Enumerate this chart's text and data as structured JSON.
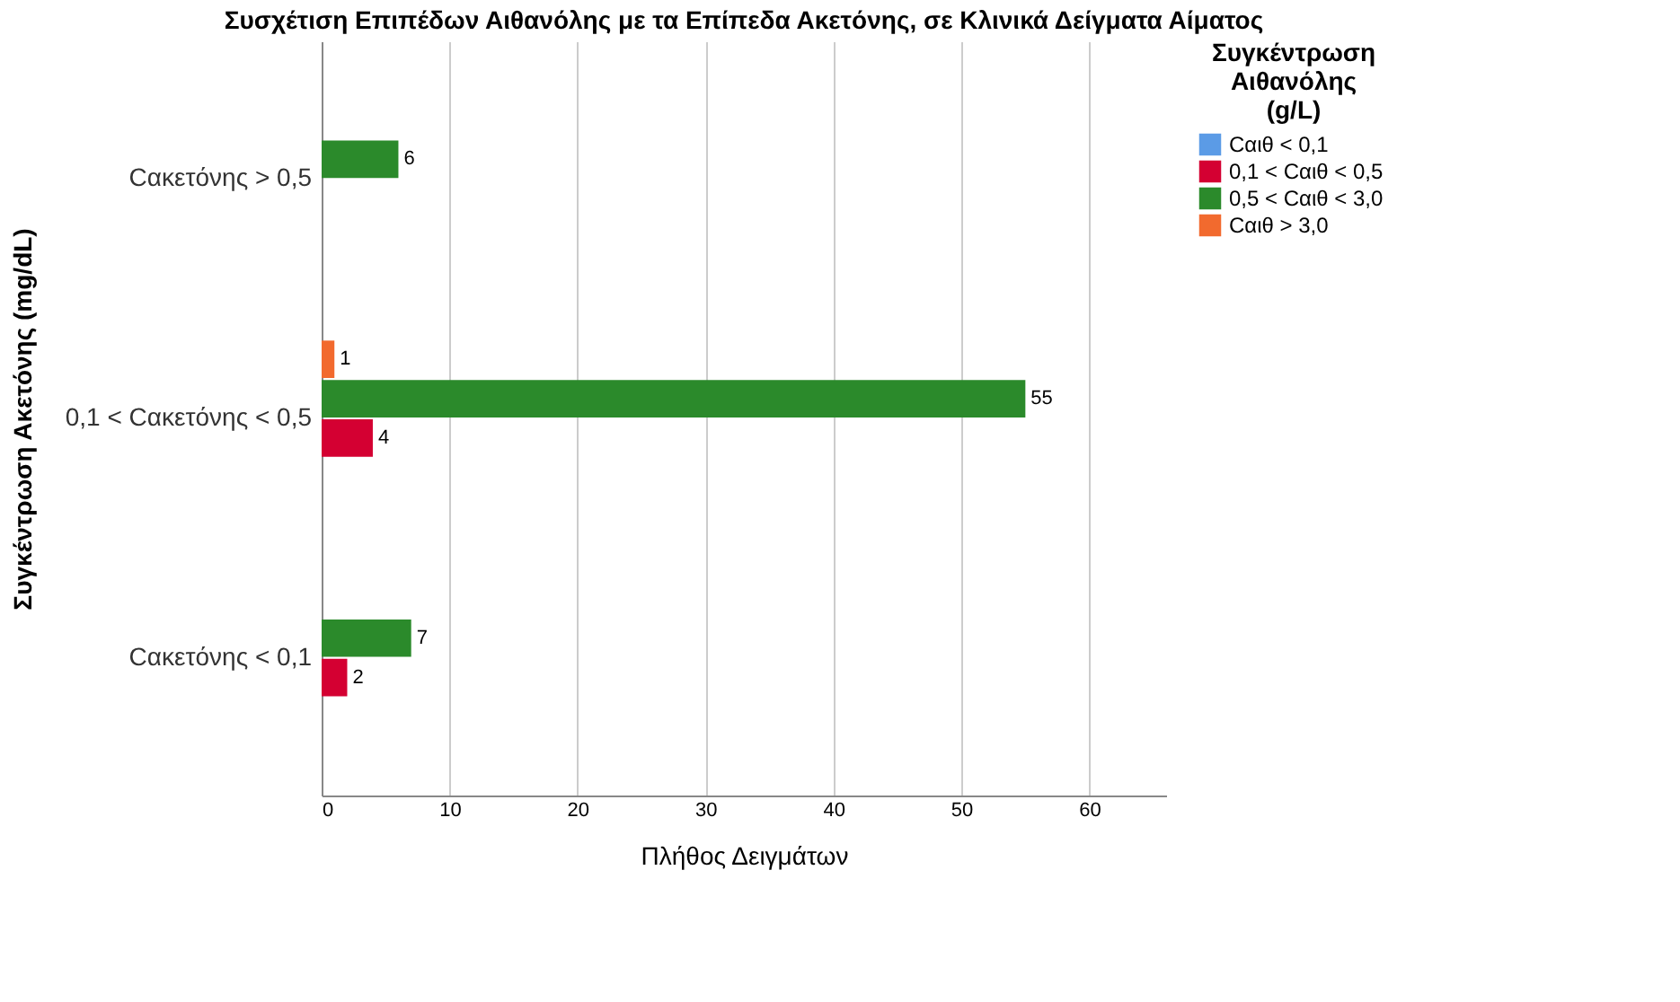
{
  "chart_data": {
    "type": "bar",
    "orientation": "horizontal",
    "title": "Συσχέτιση Επιπέδων Αιθανόλης με τα Επίπεδα Ακετόνης, σε Κλινικά Δείγματα Αίματος",
    "xlabel": "Πλήθος Δειγμάτων",
    "ylabel": "Συγκέντρωση Ακετόνης (mg/dL)",
    "legend_title": "Συγκέντρωση Αιθανόλης (g/L)",
    "categories": [
      "Cακετόνης > 0,5",
      "0,1  < Cακετόνης < 0,5",
      "Cακετόνης < 0,1"
    ],
    "series": [
      {
        "name": "Cαιθ < 0,1",
        "color": "#5b9be6",
        "values": [
          null,
          null,
          null
        ]
      },
      {
        "name": "0,1  < Cαιθ < 0,5",
        "color": "#d40032",
        "values": [
          null,
          4,
          2
        ]
      },
      {
        "name": "0,5  < Cαιθ < 3,0",
        "color": "#2b8a2b",
        "values": [
          6,
          55,
          7
        ]
      },
      {
        "name": "Cαιθ > 3,0",
        "color": "#f26a2e",
        "values": [
          null,
          1,
          null
        ]
      }
    ],
    "xlim": [
      0,
      66
    ],
    "xticks": [
      0,
      10,
      20,
      30,
      40,
      50,
      60
    ],
    "grid": "x",
    "legend": "right",
    "data_labels": true
  }
}
